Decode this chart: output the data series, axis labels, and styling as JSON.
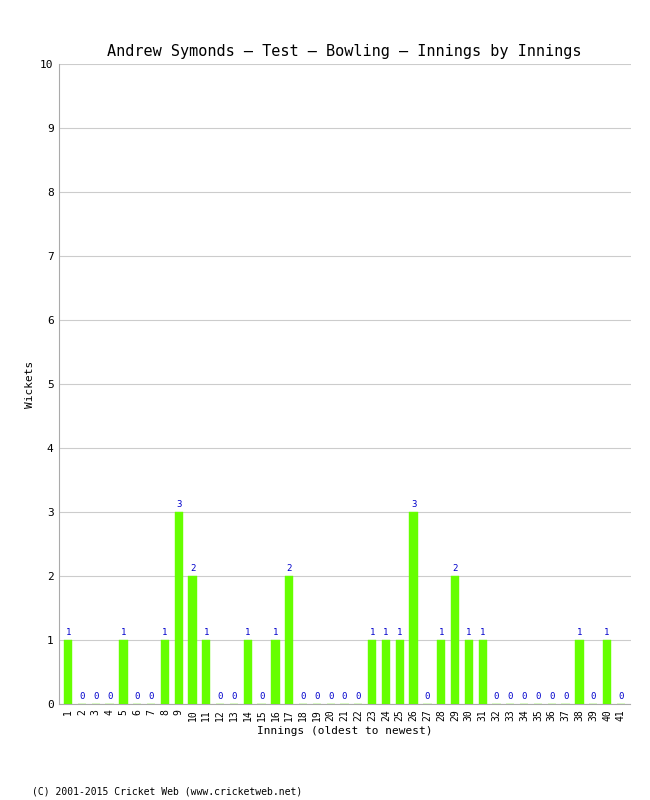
{
  "title": "Andrew Symonds – Test – Bowling – Innings by Innings",
  "xlabel": "Innings (oldest to newest)",
  "ylabel": "Wickets",
  "footer": "(C) 2001-2015 Cricket Web (www.cricketweb.net)",
  "ylim": [
    0,
    10
  ],
  "yticks": [
    0,
    1,
    2,
    3,
    4,
    5,
    6,
    7,
    8,
    9,
    10
  ],
  "innings": [
    1,
    2,
    3,
    4,
    5,
    6,
    7,
    8,
    9,
    10,
    11,
    12,
    13,
    14,
    15,
    16,
    17,
    18,
    19,
    20,
    21,
    22,
    23,
    24,
    25,
    26,
    27,
    28,
    29,
    30,
    31,
    32,
    33,
    34,
    35,
    36,
    37,
    38,
    39,
    40,
    41
  ],
  "wickets": [
    1,
    0,
    0,
    0,
    1,
    0,
    0,
    1,
    3,
    2,
    1,
    0,
    0,
    1,
    0,
    1,
    2,
    0,
    0,
    0,
    0,
    0,
    1,
    1,
    1,
    3,
    0,
    1,
    2,
    1,
    1,
    0,
    0,
    0,
    0,
    0,
    0,
    1,
    0,
    1,
    0
  ],
  "bar_color": "#66ff00",
  "label_color": "#0000cc",
  "background_color": "#ffffff",
  "grid_color": "#cccccc",
  "title_fontsize": 11,
  "axis_fontsize": 8,
  "label_fontsize": 6.5,
  "tick_fontsize": 7
}
